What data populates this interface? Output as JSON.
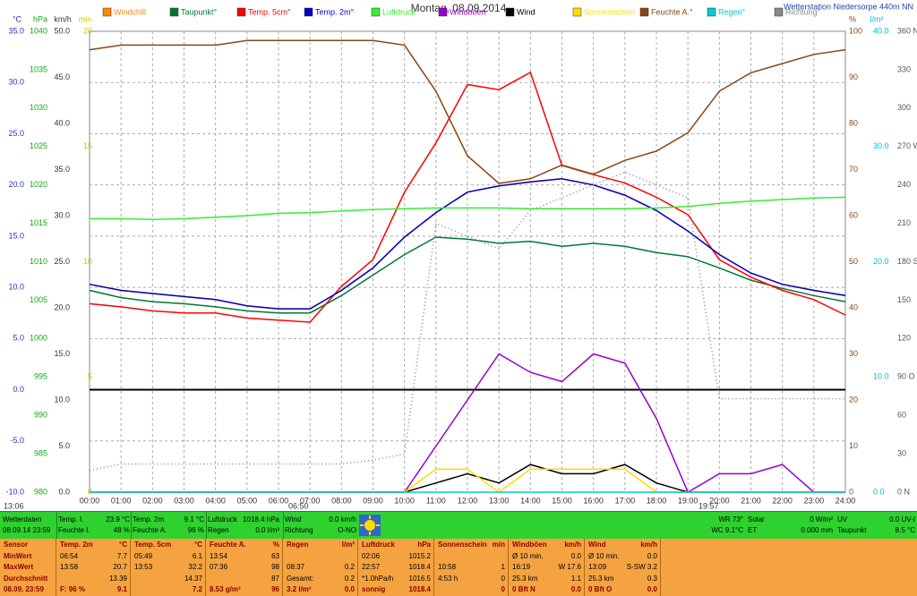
{
  "chart_data": {
    "type": "line",
    "title": "Montag, 08.09.2014",
    "subtitle": "Wetterstation Niedersorpe 440m NN",
    "categories": [
      "00:00",
      "01:00",
      "02:00",
      "03:00",
      "04:00",
      "05:00",
      "06:00",
      "07:00",
      "08:00",
      "09:00",
      "10:00",
      "11:00",
      "12:00",
      "13:00",
      "14:00",
      "15:00",
      "16:00",
      "17:00",
      "18:00",
      "19:00",
      "20:00",
      "21:00",
      "22:00",
      "23:00",
      "24:00"
    ],
    "annotations": [
      "13:06",
      "06:50",
      "19:57"
    ],
    "grid": true,
    "axes": [
      {
        "unit": "°C",
        "color": "#3030c0",
        "ylim": [
          -10,
          35
        ],
        "yticks": [
          {
            "value": -10,
            "label": "-10.0"
          },
          {
            "value": -5,
            "label": "-5.0"
          },
          {
            "value": 0,
            "label": "0.0"
          },
          {
            "value": 5,
            "label": "5.0"
          },
          {
            "value": 10,
            "label": "10.0"
          },
          {
            "value": 15,
            "label": "15.0"
          },
          {
            "value": 20,
            "label": "20.0"
          },
          {
            "value": 25,
            "label": "25.0"
          },
          {
            "value": 30,
            "label": "30.0"
          },
          {
            "value": 35,
            "label": "35.0"
          }
        ],
        "series": [
          {
            "name": "Windchill",
            "color": "#ff8800",
            "values": [
              10.3,
              9.7,
              9.4,
              9.1,
              8.8,
              8.2,
              7.9,
              7.9,
              9.7,
              11.9,
              14.9,
              17.3,
              19.3,
              19.9,
              20.3,
              20.6,
              20.0,
              19.0,
              17.5,
              15.5,
              13.2,
              11.4,
              10.3,
              9.7,
              9.2
            ]
          },
          {
            "name": "Taupunkt°",
            "color": "#007733",
            "values": [
              9.7,
              9.0,
              8.6,
              8.4,
              8.1,
              7.7,
              7.5,
              7.5,
              9.2,
              11.2,
              13.2,
              14.9,
              14.7,
              14.3,
              14.5,
              14.0,
              14.3,
              14.0,
              13.4,
              13.0,
              11.9,
              10.7,
              9.9,
              9.2,
              8.6
            ]
          },
          {
            "name": "Temp. 5cm°",
            "color": "#ff0000",
            "values": [
              8.4,
              8.1,
              7.7,
              7.5,
              7.5,
              7.0,
              6.8,
              6.6,
              10.1,
              12.7,
              19.3,
              24.1,
              29.8,
              29.3,
              31.0,
              21.9,
              21.0,
              20.2,
              18.8,
              17.1,
              12.7,
              11.0,
              9.7,
              8.8,
              7.3
            ]
          },
          {
            "name": "Temp. 2m°",
            "color": "#0000cc",
            "values": [
              10.3,
              9.7,
              9.4,
              9.1,
              8.8,
              8.2,
              7.9,
              7.9,
              9.7,
              11.9,
              14.9,
              17.3,
              19.3,
              19.9,
              20.3,
              20.6,
              20.0,
              19.0,
              17.5,
              15.5,
              13.2,
              11.4,
              10.3,
              9.7,
              9.2
            ]
          }
        ]
      },
      {
        "unit": "hPa",
        "color": "#11aa11",
        "ylim": [
          980,
          1040
        ],
        "yticks": [
          980,
          985,
          990,
          995,
          1000,
          1005,
          1010,
          1015,
          1020,
          1025,
          1030,
          1035,
          1040
        ],
        "series": [
          {
            "name": "Luftdruck°",
            "color": "#33ee33",
            "values": [
              1015.6,
              1015.6,
              1015.5,
              1015.6,
              1015.8,
              1016.0,
              1016.3,
              1016.4,
              1016.6,
              1016.8,
              1016.9,
              1017.0,
              1017.0,
              1017.0,
              1016.9,
              1016.9,
              1016.9,
              1016.9,
              1017.0,
              1017.2,
              1017.6,
              1017.9,
              1018.1,
              1018.3,
              1018.4
            ]
          }
        ]
      },
      {
        "unit": "km/h",
        "color": "#333333",
        "ylim": [
          0,
          50
        ],
        "yticks": [
          {
            "value": 0,
            "label": "0.0"
          },
          {
            "value": 5,
            "label": "5.0"
          },
          {
            "value": 10,
            "label": "10.0"
          },
          {
            "value": 15,
            "label": "15.0"
          },
          {
            "value": 20,
            "label": "20.0"
          },
          {
            "value": 25,
            "label": "25.0"
          },
          {
            "value": 30,
            "label": "30.0"
          },
          {
            "value": 35,
            "label": "35.0"
          },
          {
            "value": 40,
            "label": "40.0"
          },
          {
            "value": 45,
            "label": "45.0"
          },
          {
            "value": 50,
            "label": "50.0"
          }
        ],
        "series": [
          {
            "name": "Windböen",
            "color": "#9900cc",
            "values": [
              0,
              0,
              0,
              0,
              0,
              0,
              0,
              0,
              0,
              0,
              0,
              5,
              10,
              15,
              13,
              12,
              15,
              14,
              8,
              0,
              2,
              2,
              3,
              0,
              0
            ]
          },
          {
            "name": "Wind",
            "color": "#000000",
            "values": [
              0,
              0,
              0,
              0,
              0,
              0,
              0,
              0,
              0,
              0,
              0,
              1,
              2,
              1,
              3,
              2,
              2,
              3,
              1,
              0,
              0,
              0,
              0,
              0,
              0
            ]
          }
        ]
      },
      {
        "unit": "min",
        "color": "#d4c400",
        "ylim": [
          0,
          20
        ],
        "yticks": [
          0,
          5,
          10,
          15,
          20
        ],
        "series": [
          {
            "name": "Sonnenschein",
            "color": "#ffdd00",
            "values": [
              0,
              0,
              0,
              0,
              0,
              0,
              0,
              0,
              0,
              0,
              0,
              1,
              1,
              0,
              1,
              1,
              1,
              1,
              0,
              0,
              0,
              0,
              0,
              0,
              0
            ]
          }
        ]
      },
      {
        "unit": "%",
        "color": "#8b4513",
        "ylim": [
          0,
          100
        ],
        "yticks": [
          0,
          10,
          20,
          30,
          40,
          50,
          60,
          70,
          80,
          90,
          100
        ],
        "series": [
          {
            "name": "Feuchte A.°",
            "color": "#8b4513",
            "values": [
              96,
              97,
              97,
              97,
              97,
              98,
              98,
              98,
              98,
              98,
              97,
              87,
              73,
              67,
              68,
              71,
              69,
              72,
              74,
              78,
              87,
              91,
              93,
              95,
              96
            ]
          }
        ]
      },
      {
        "unit": "l/m²",
        "color": "#00bbcc",
        "ylim": [
          0,
          40
        ],
        "yticks": [
          {
            "value": 0,
            "label": "0.0"
          },
          {
            "value": 10,
            "label": "10.0"
          },
          {
            "value": 20,
            "label": "20.0"
          },
          {
            "value": 30,
            "label": "30.0"
          },
          {
            "value": 40,
            "label": "40.0"
          }
        ],
        "series": [
          {
            "name": "Regen°",
            "color": "#00cccc",
            "values": [
              0,
              0,
              0,
              0,
              0,
              0,
              0,
              0,
              0,
              0,
              0,
              0,
              0,
              0,
              0,
              0,
              0,
              0,
              0,
              0,
              0,
              0,
              0,
              0,
              0
            ]
          }
        ]
      },
      {
        "color": "#555555",
        "ylim": [
          0,
          360
        ],
        "yticks": [
          {
            "value": 0,
            "label": "0 N"
          },
          30,
          60,
          {
            "value": 90,
            "label": "90 O"
          },
          120,
          150,
          {
            "value": 180,
            "label": "180 S"
          },
          210,
          240,
          {
            "value": 270,
            "label": "270 W"
          },
          300,
          330,
          {
            "value": 360,
            "label": "360 N"
          }
        ],
        "series": [
          {
            "name": "Richtung°",
            "color": "#888888",
            "values": [
              17,
              22,
              22,
              22,
              22,
              22,
              22,
              22,
              22,
              25,
              30,
              210,
              200,
              190,
              220,
              230,
              240,
              250,
              240,
              230,
              73,
              73,
              73,
              73,
              73
            ]
          }
        ]
      }
    ]
  },
  "status": {
    "title": [
      "Wetterdaten",
      "08.09.14 23:59"
    ],
    "items": [
      [
        "Temp. I.",
        "23.9 °C",
        "Feuchte I.",
        "48 %"
      ],
      [
        "Temp. 2m",
        "9.1 °C",
        "Feuchte A.",
        "96 %"
      ],
      [
        "Luftdruck",
        "1018.4 hPa",
        "Regen",
        "0.0 l/m²"
      ],
      [
        "Wind",
        "0.0 km/h",
        "Richtung",
        "O-NO"
      ]
    ],
    "right_items": [
      [
        "WR 73°",
        "WC 9.1°C"
      ],
      [
        "Solar",
        "0 W/m²",
        "ET",
        "0.000 mm"
      ],
      [
        "UV",
        "0.0 UV-I",
        "Taupunkt",
        "8.5 °C"
      ]
    ]
  },
  "table": {
    "header": [
      [
        "Sensor"
      ],
      [
        "Temp. 2m",
        "°C"
      ],
      [
        "Temp. 5cm",
        "°C"
      ],
      [
        "Feuchte A.",
        "%"
      ],
      [
        "Regen",
        "l/m²"
      ],
      [
        "Luftdruck",
        "hPa"
      ],
      [
        "Sonnenschein",
        "min"
      ],
      [
        "Windböen",
        "km/h"
      ],
      [
        "Wind",
        "km/h"
      ]
    ],
    "rows": [
      [
        [
          "MinWert"
        ],
        [
          "06:54",
          "7.7"
        ],
        [
          "05:49",
          "6.1"
        ],
        [
          "13:54",
          "63"
        ],
        [],
        [
          "02:06",
          "1015.2"
        ],
        [],
        [
          "Ø 10 min.",
          "0.0"
        ],
        [
          "Ø 10 min.",
          "0.0"
        ]
      ],
      [
        [
          "MaxWert"
        ],
        [
          "13:58",
          "20.7"
        ],
        [
          "13:53",
          "32.2"
        ],
        [
          "07:36",
          "98"
        ],
        [
          "08:37",
          "0.2"
        ],
        [
          "22:57",
          "1018.4"
        ],
        [
          "10:58",
          "1"
        ],
        [
          "16:19",
          "W 17.6"
        ],
        [
          "13:09",
          "S-SW 3.2"
        ]
      ],
      [
        [
          "Durchschnitt"
        ],
        [
          null,
          "13.39"
        ],
        [
          null,
          "14.37"
        ],
        [
          null,
          "87"
        ],
        [
          "Gesamt:",
          "0.2"
        ],
        [
          "*1.0hPa/h",
          "1016.5"
        ],
        [
          "4:53 h",
          "0"
        ],
        [
          "25.3 km",
          "1.1"
        ],
        [
          "25.3 km",
          "0.3"
        ]
      ],
      [
        [
          "08.09. 23:59"
        ],
        [
          "F: 96 %",
          "9.1"
        ],
        [
          null,
          "7.2"
        ],
        [
          "8.53 g/m³",
          "96"
        ],
        [
          "3.2 l/m³",
          "0.0"
        ],
        [
          "sonnig",
          "1018.4"
        ],
        [
          null,
          "0"
        ],
        [
          "0 Bft N",
          "0.0"
        ],
        [
          "0 Bft O",
          "0.0"
        ]
      ]
    ]
  }
}
